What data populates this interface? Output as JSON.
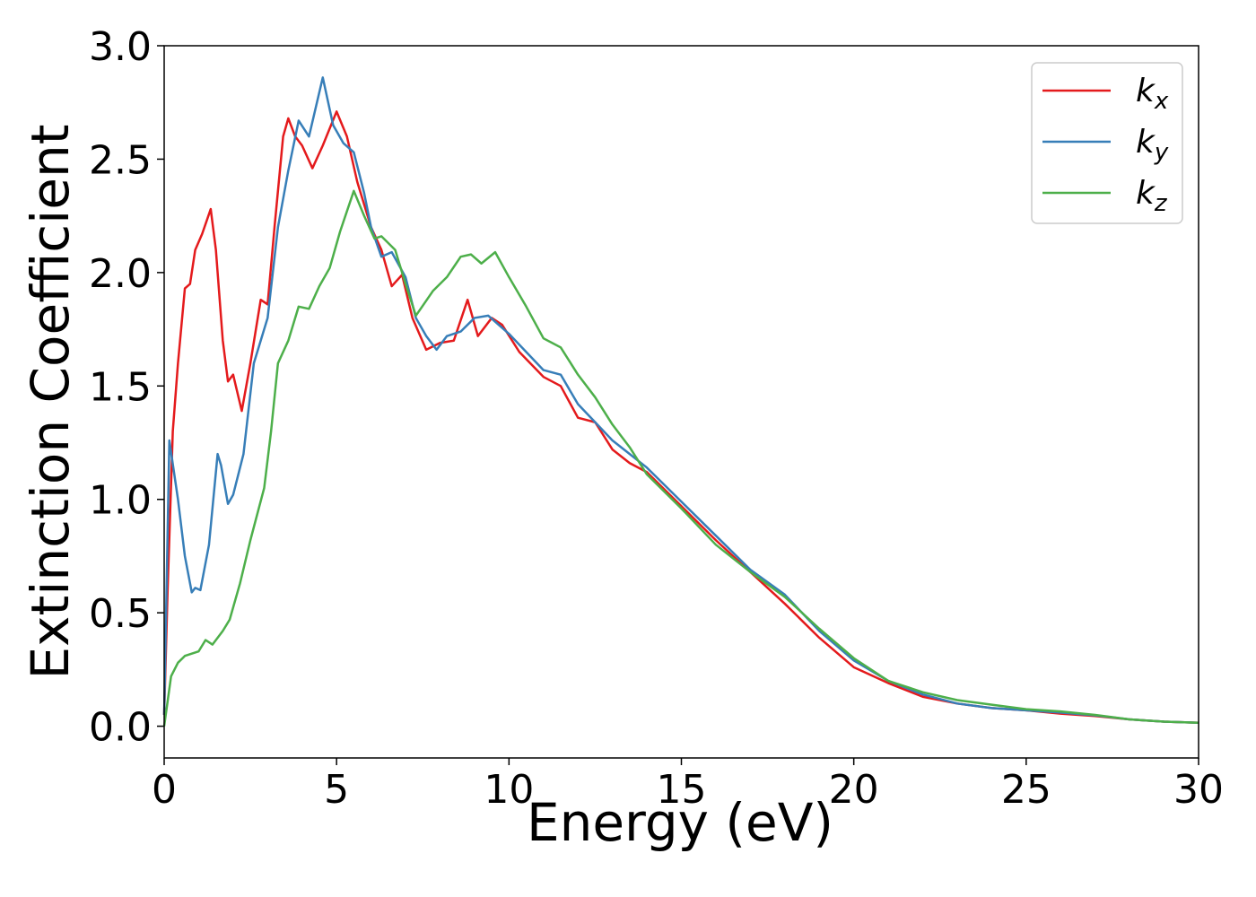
{
  "chart_data": {
    "type": "line",
    "xlabel": "Energy (eV)",
    "ylabel": "Extinction Coefficient",
    "xlim": [
      0,
      30
    ],
    "ylim": [
      -0.14,
      3.0
    ],
    "xticks": [
      0,
      5,
      10,
      15,
      20,
      25,
      30
    ],
    "yticks": [
      {
        "value": 0,
        "label": "0.0"
      },
      {
        "value": 0.5,
        "label": "0.5"
      },
      {
        "value": 1,
        "label": "1.0"
      },
      {
        "value": 1.5,
        "label": "1.5"
      },
      {
        "value": 2,
        "label": "2.0"
      },
      {
        "value": 2.5,
        "label": "2.5"
      },
      {
        "value": 3,
        "label": "3.0"
      }
    ],
    "legend": "upper right",
    "series": [
      {
        "name": "kx",
        "color": "#e41a1c",
        "x": [
          0,
          0.1,
          0.25,
          0.4,
          0.6,
          0.75,
          0.9,
          1.1,
          1.35,
          1.5,
          1.7,
          1.85,
          2.0,
          2.25,
          2.5,
          2.8,
          3.0,
          3.2,
          3.45,
          3.6,
          3.8,
          4.0,
          4.3,
          4.6,
          5.0,
          5.3,
          5.6,
          6.0,
          6.3,
          6.6,
          6.9,
          7.2,
          7.6,
          8.0,
          8.4,
          8.8,
          9.1,
          9.5,
          9.8,
          10.3,
          11,
          11.5,
          12,
          12.5,
          13,
          13.5,
          14,
          15,
          16,
          17,
          18,
          19,
          20,
          21,
          22,
          23,
          24,
          25,
          26,
          27,
          28,
          29,
          30
        ],
        "values": [
          0.05,
          0.6,
          1.3,
          1.6,
          1.93,
          1.95,
          2.1,
          2.17,
          2.28,
          2.1,
          1.7,
          1.52,
          1.55,
          1.39,
          1.6,
          1.88,
          1.86,
          2.2,
          2.6,
          2.68,
          2.6,
          2.56,
          2.46,
          2.56,
          2.71,
          2.6,
          2.4,
          2.2,
          2.1,
          1.94,
          1.99,
          1.8,
          1.66,
          1.69,
          1.7,
          1.88,
          1.72,
          1.8,
          1.77,
          1.65,
          1.54,
          1.5,
          1.36,
          1.34,
          1.22,
          1.16,
          1.12,
          0.97,
          0.82,
          0.68,
          0.54,
          0.39,
          0.26,
          0.19,
          0.13,
          0.1,
          0.08,
          0.07,
          0.055,
          0.045,
          0.03,
          0.02,
          0.015
        ]
      },
      {
        "name": "ky",
        "color": "#377eb8",
        "x": [
          0,
          0.15,
          0.4,
          0.6,
          0.8,
          0.9,
          1.05,
          1.3,
          1.55,
          1.65,
          1.85,
          2.0,
          2.3,
          2.6,
          3.0,
          3.3,
          3.6,
          3.9,
          4.2,
          4.6,
          4.9,
          5.2,
          5.5,
          5.8,
          6.0,
          6.3,
          6.6,
          7.0,
          7.3,
          7.6,
          7.9,
          8.2,
          8.6,
          9.0,
          9.4,
          10,
          10.5,
          11,
          11.5,
          12,
          12.5,
          13,
          13.5,
          14,
          15,
          16,
          17,
          18,
          19,
          20,
          21,
          22,
          23,
          24,
          25,
          26,
          27,
          28,
          29,
          30
        ],
        "values": [
          0.05,
          1.26,
          1.0,
          0.75,
          0.59,
          0.61,
          0.6,
          0.8,
          1.2,
          1.15,
          0.98,
          1.02,
          1.2,
          1.6,
          1.8,
          2.2,
          2.45,
          2.67,
          2.6,
          2.86,
          2.65,
          2.57,
          2.53,
          2.35,
          2.2,
          2.07,
          2.09,
          1.98,
          1.8,
          1.72,
          1.66,
          1.72,
          1.74,
          1.8,
          1.81,
          1.73,
          1.65,
          1.57,
          1.55,
          1.42,
          1.34,
          1.26,
          1.2,
          1.14,
          0.99,
          0.84,
          0.69,
          0.58,
          0.42,
          0.29,
          0.2,
          0.14,
          0.1,
          0.08,
          0.07,
          0.06,
          0.048,
          0.03,
          0.02,
          0.015
        ]
      },
      {
        "name": "kz",
        "color": "#4daf4a",
        "x": [
          0,
          0.2,
          0.4,
          0.6,
          1.0,
          1.2,
          1.4,
          1.7,
          1.9,
          2.2,
          2.5,
          2.9,
          3.1,
          3.3,
          3.6,
          3.9,
          4.2,
          4.5,
          4.8,
          5.1,
          5.5,
          5.8,
          6.1,
          6.3,
          6.7,
          7.0,
          7.3,
          7.8,
          8.2,
          8.6,
          8.9,
          9.2,
          9.6,
          10,
          10.5,
          11,
          11.5,
          12,
          12.5,
          13,
          13.5,
          14,
          15,
          16,
          17,
          18,
          19,
          20,
          21,
          22,
          23,
          24,
          25,
          26,
          27,
          28,
          29,
          30
        ],
        "values": [
          0.0,
          0.22,
          0.28,
          0.31,
          0.33,
          0.38,
          0.36,
          0.42,
          0.47,
          0.63,
          0.82,
          1.05,
          1.3,
          1.6,
          1.7,
          1.85,
          1.84,
          1.94,
          2.02,
          2.18,
          2.36,
          2.25,
          2.15,
          2.16,
          2.1,
          1.95,
          1.81,
          1.92,
          1.98,
          2.07,
          2.08,
          2.04,
          2.09,
          1.98,
          1.85,
          1.71,
          1.67,
          1.55,
          1.45,
          1.33,
          1.23,
          1.11,
          0.96,
          0.8,
          0.68,
          0.57,
          0.43,
          0.3,
          0.2,
          0.15,
          0.115,
          0.095,
          0.075,
          0.065,
          0.05,
          0.03,
          0.02,
          0.015
        ]
      }
    ]
  }
}
